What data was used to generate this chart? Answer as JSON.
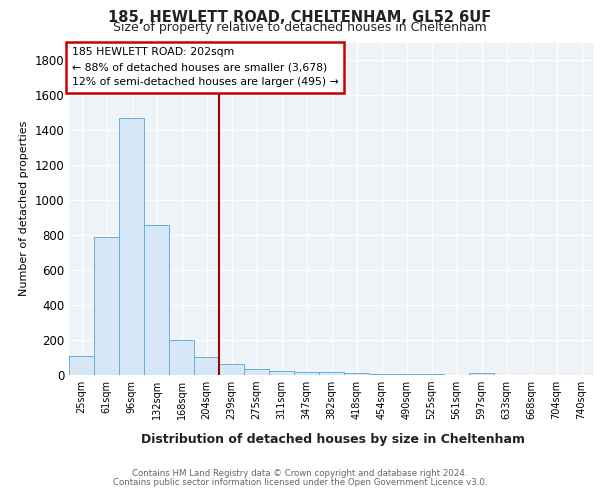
{
  "title1": "185, HEWLETT ROAD, CHELTENHAM, GL52 6UF",
  "title2": "Size of property relative to detached houses in Cheltenham",
  "xlabel": "Distribution of detached houses by size in Cheltenham",
  "ylabel": "Number of detached properties",
  "categories": [
    "25sqm",
    "61sqm",
    "96sqm",
    "132sqm",
    "168sqm",
    "204sqm",
    "239sqm",
    "275sqm",
    "311sqm",
    "347sqm",
    "382sqm",
    "418sqm",
    "454sqm",
    "490sqm",
    "525sqm",
    "561sqm",
    "597sqm",
    "633sqm",
    "668sqm",
    "704sqm",
    "740sqm"
  ],
  "values": [
    110,
    790,
    1470,
    860,
    200,
    105,
    65,
    35,
    25,
    20,
    15,
    10,
    8,
    5,
    3,
    2,
    10,
    0,
    0,
    0,
    0
  ],
  "bar_color": "#d6e8f7",
  "bar_edge_color": "#6aaed6",
  "vline_x": 5.5,
  "vline_color": "#990000",
  "annotation_line1": "185 HEWLETT ROAD: 202sqm",
  "annotation_line2": "← 88% of detached houses are smaller (3,678)",
  "annotation_line3": "12% of semi-detached houses are larger (495) →",
  "annotation_box_color": "white",
  "annotation_box_edge_color": "#cc0000",
  "ylim": [
    0,
    1900
  ],
  "yticks": [
    0,
    200,
    400,
    600,
    800,
    1000,
    1200,
    1400,
    1600,
    1800
  ],
  "footer1": "Contains HM Land Registry data © Crown copyright and database right 2024.",
  "footer2": "Contains public sector information licensed under the Open Government Licence v3.0.",
  "bg_color": "#ffffff",
  "plot_bg_color": "#eef3f8"
}
